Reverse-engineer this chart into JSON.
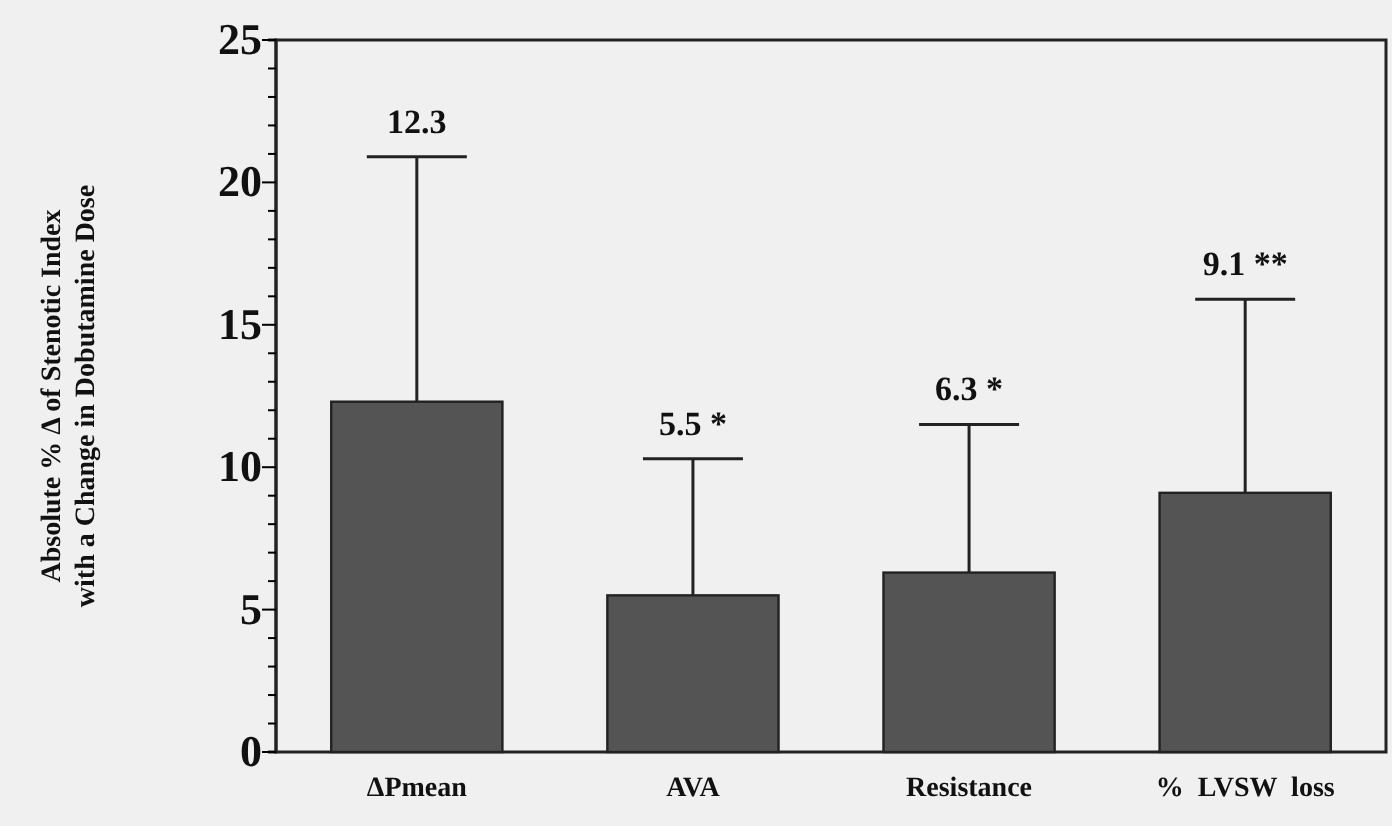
{
  "chart_data": {
    "type": "bar",
    "ylabel": "Absolute % Δ of Stenotic Index\nwith a Change in Dobutamine Dose",
    "categories": [
      "ΔPmean",
      "AVA",
      "Resistance",
      "%  LVSW  loss"
    ],
    "values": [
      12.3,
      5.5,
      6.3,
      9.1
    ],
    "errors": [
      [
        12.3,
        20.9
      ],
      [
        5.5,
        10.3
      ],
      [
        6.3,
        11.5
      ],
      [
        9.1,
        15.9
      ]
    ],
    "annotations": [
      {
        "text": "12.3",
        "x": "ΔPmean",
        "y": 20.9
      },
      {
        "text": "5.5 *",
        "x": "AVA",
        "y": 10.3
      },
      {
        "text": "6.3 *",
        "x": "Resistance",
        "y": 11.5
      },
      {
        "text": "9.1 **",
        "x": "%  LVSW  loss",
        "y": 15.9
      }
    ],
    "color": "#545454",
    "ylim": [
      0,
      25
    ],
    "yticks": [
      0,
      {
        "value": 1,
        "label": null
      },
      {
        "value": 2,
        "label": null
      },
      {
        "value": 3,
        "label": null
      },
      {
        "value": 4,
        "label": null
      },
      5,
      {
        "value": 6,
        "label": null
      },
      {
        "value": 7,
        "label": null
      },
      {
        "value": 8,
        "label": null
      },
      {
        "value": 9,
        "label": null
      },
      10,
      {
        "value": 11,
        "label": null
      },
      {
        "value": 12,
        "label": null
      },
      {
        "value": 13,
        "label": null
      },
      {
        "value": 14,
        "label": null
      },
      15,
      {
        "value": 16,
        "label": null
      },
      {
        "value": 17,
        "label": null
      },
      {
        "value": 18,
        "label": null
      },
      {
        "value": 19,
        "label": null
      },
      20,
      {
        "value": 21,
        "label": null
      },
      {
        "value": 22,
        "label": null
      },
      {
        "value": 23,
        "label": null
      },
      {
        "value": 24,
        "label": null
      },
      25
    ],
    "grid": false
  }
}
